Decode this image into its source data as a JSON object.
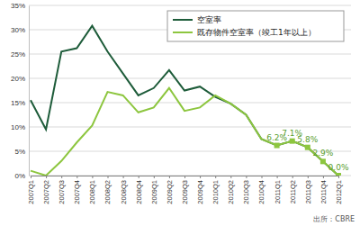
{
  "chart_data": {
    "type": "line",
    "categories": [
      "2007Q1",
      "2007Q2",
      "2007Q3",
      "2007Q4",
      "2008Q1",
      "2008Q2",
      "2008Q3",
      "2008Q4",
      "2009Q1",
      "2009Q2",
      "2009Q3",
      "2009Q4",
      "2010Q1",
      "2010Q2",
      "2010Q3",
      "2010Q4",
      "2011Q1",
      "2011Q2",
      "2011Q3",
      "2011Q4",
      "2012Q1"
    ],
    "series": [
      {
        "name": "空室率",
        "color": "#1e5c3a",
        "values": [
          15.5,
          9.5,
          25.5,
          26.2,
          30.8,
          25.5,
          21.0,
          16.5,
          18.0,
          21.7,
          17.5,
          18.3,
          16.2,
          14.8,
          12.5,
          7.5,
          6.2,
          7.1,
          5.8,
          2.9,
          0.0
        ]
      },
      {
        "name": "既存物件空室率（竣工1年以上）",
        "color": "#8dc63f",
        "marker": "square",
        "data_labels": true,
        "values": [
          1.0,
          0.0,
          3.0,
          6.8,
          10.3,
          17.2,
          16.5,
          13.0,
          14.0,
          18.0,
          13.3,
          14.0,
          16.5,
          14.8,
          12.5,
          7.5,
          6.2,
          7.1,
          5.8,
          2.9,
          0.0
        ],
        "value_labels": [
          null,
          null,
          null,
          null,
          null,
          null,
          null,
          null,
          null,
          null,
          null,
          null,
          null,
          null,
          null,
          null,
          "6.2%",
          "7.1%",
          "5.8%",
          "2.9%",
          "0.0%"
        ]
      }
    ],
    "ylim": [
      0,
      35
    ],
    "yticks": [
      {
        "value": 0,
        "label": "0%"
      },
      {
        "value": 5,
        "label": "5%"
      },
      {
        "value": 10,
        "label": "10%"
      },
      {
        "value": 15,
        "label": "15%"
      },
      {
        "value": 20,
        "label": "20%"
      },
      {
        "value": 25,
        "label": "25%"
      },
      {
        "value": 30,
        "label": "30%"
      },
      {
        "value": 35,
        "label": "35%"
      }
    ],
    "grid": true,
    "legend": "upper right",
    "source": "出所：CBRE"
  }
}
